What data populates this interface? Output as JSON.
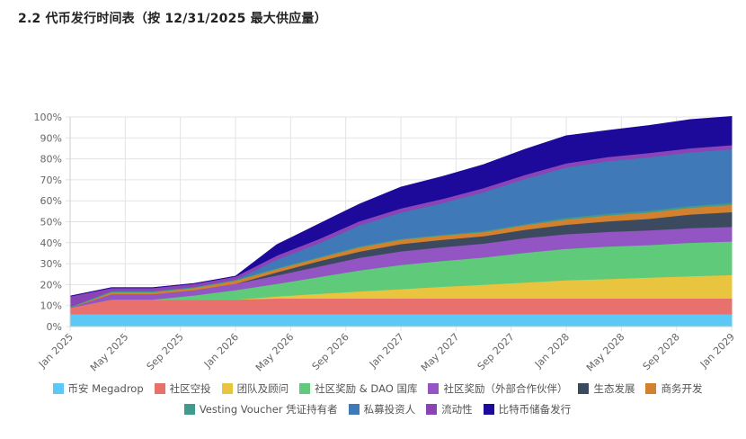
{
  "title": "2.2 代币发行时间表（按 12/31/2025 最大供应量）",
  "chart_data": {
    "type": "area",
    "stacked": true,
    "title": "2.2 代币发行时间表（按 12/31/2025 最大供应量）",
    "xlabel": "",
    "ylabel": "",
    "ylim": [
      0,
      100
    ],
    "y_ticks": [
      "0%",
      "10%",
      "20%",
      "30%",
      "40%",
      "50%",
      "60%",
      "70%",
      "80%",
      "90%",
      "100%"
    ],
    "x_ticks": [
      "Jan 2025",
      "May 2025",
      "Sep 2025",
      "Jan 2026",
      "May 2026",
      "Sep 2026",
      "Jan 2027",
      "May 2027",
      "Sep 2027",
      "Jan 2028",
      "May 2028",
      "Sep 2028",
      "Jan 2029"
    ],
    "x": [
      "2025-01",
      "2025-04",
      "2025-07",
      "2025-10",
      "2026-01",
      "2026-04",
      "2026-07",
      "2026-10",
      "2027-01",
      "2027-04",
      "2027-07",
      "2027-10",
      "2028-01",
      "2028-04",
      "2028-07",
      "2028-10",
      "2029-01"
    ],
    "grid": true,
    "legend_position": "bottom",
    "series": [
      {
        "name": "币安 Megadrop",
        "color": "#5bc8f5",
        "values": [
          6,
          6,
          6,
          6,
          6,
          6,
          6,
          6,
          6,
          6,
          6,
          6,
          6,
          6,
          6,
          6,
          6
        ]
      },
      {
        "name": "社区空投",
        "color": "#e8716d",
        "values": [
          3,
          7,
          7,
          7,
          7,
          7.5,
          7.5,
          7.5,
          7.5,
          7.5,
          7.5,
          7.5,
          7.5,
          7.5,
          7.5,
          7.5,
          7.5
        ]
      },
      {
        "name": "团队及顾问",
        "color": "#e9c53f",
        "values": [
          0,
          0,
          0,
          0,
          0,
          1,
          2.2,
          3.4,
          4.5,
          5.6,
          6.6,
          7.6,
          8.7,
          9.3,
          10.0,
          10.6,
          11.2
        ]
      },
      {
        "name": "社区奖励 & DAO 国库",
        "color": "#5fcb7a",
        "values": [
          0,
          0,
          0,
          2,
          4.5,
          6,
          8,
          10,
          11.5,
          12.3,
          13,
          14.2,
          15,
          15.5,
          15.5,
          16,
          16
        ]
      },
      {
        "name": "社区奖励（外部合作伙伴）",
        "color": "#9355c3",
        "values": [
          0,
          2.5,
          2.5,
          2.5,
          3,
          4,
          5,
          6,
          6.5,
          6.6,
          6.6,
          7,
          7,
          7,
          7,
          7,
          7
        ]
      },
      {
        "name": "生态发展",
        "color": "#3c4a60",
        "values": [
          0,
          0,
          0,
          0,
          0,
          1.5,
          2.5,
          3,
          3.5,
          3.5,
          3.5,
          4,
          4.5,
          5,
          5.5,
          6.5,
          7
        ]
      },
      {
        "name": "商务开发",
        "color": "#d4812f",
        "values": [
          0,
          1,
          1,
          1,
          1.5,
          1.5,
          1.5,
          2,
          2,
          2,
          2,
          2.2,
          2.5,
          2.8,
          3,
          3.2,
          3.5
        ]
      },
      {
        "name": "Vesting Voucher 凭证持有者",
        "color": "#3f9b8e",
        "values": [
          0.5,
          0.5,
          0.5,
          0.5,
          0.5,
          0.5,
          0.5,
          0.5,
          0.5,
          0.5,
          0.5,
          0.5,
          0.8,
          0.9,
          0.9,
          0.9,
          1
        ]
      },
      {
        "name": "私募投资人",
        "color": "#4079b8",
        "values": [
          0,
          0,
          0,
          0,
          0,
          4,
          6.5,
          10,
          12.5,
          15,
          18.5,
          21.5,
          24,
          25,
          25.5,
          25.5,
          25.5
        ]
      },
      {
        "name": "流动性",
        "color": "#8a44b6",
        "values": [
          5,
          1.5,
          1.5,
          1.5,
          1.5,
          2,
          2,
          2,
          2,
          2,
          2,
          2,
          2,
          2,
          2,
          2,
          2
        ]
      },
      {
        "name": "比特币储备发行",
        "color": "#1d0a9a",
        "values": [
          0,
          0,
          0,
          0,
          0,
          5,
          7,
          8,
          10,
          10.5,
          11,
          12,
          13,
          12.5,
          13,
          13.5,
          13.5
        ]
      }
    ]
  }
}
